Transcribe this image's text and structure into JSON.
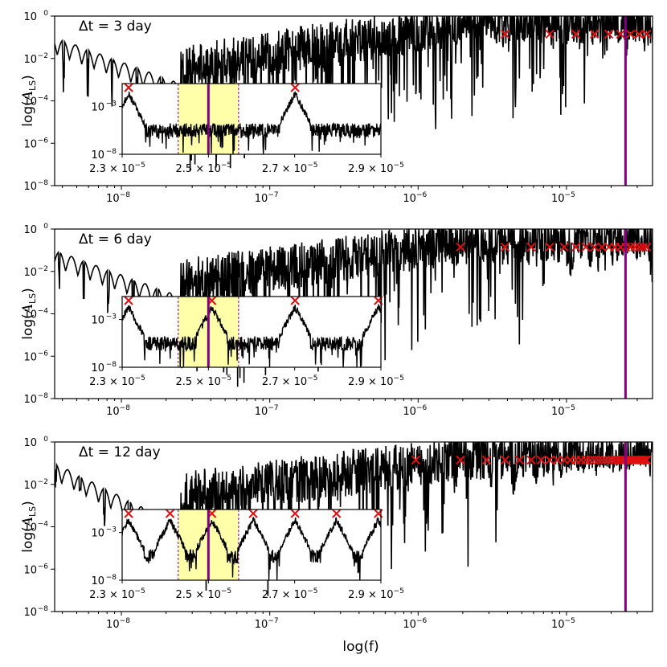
{
  "chart_data": {
    "type": "line",
    "xlabel": "log(f)",
    "ylabel_main": "log(",
    "ylabel_sym": "A",
    "ylabel_sub": "LS",
    "ylabel_close": ")",
    "xlim_log10": [
      -8.45,
      -4.42
    ],
    "ylim_log10": [
      -8,
      0
    ],
    "x_ticks": [
      {
        "base": "10",
        "exp": "−8",
        "log": -8
      },
      {
        "base": "10",
        "exp": "−7",
        "log": -7
      },
      {
        "base": "10",
        "exp": "−6",
        "log": -6
      },
      {
        "base": "10",
        "exp": "−5",
        "log": -5
      }
    ],
    "y_ticks": [
      {
        "base": "10",
        "exp": "0",
        "log": 0
      },
      {
        "base": "10",
        "exp": "−2",
        "log": -2
      },
      {
        "base": "10",
        "exp": "−4",
        "log": -4
      },
      {
        "base": "10",
        "exp": "−6",
        "log": -6
      },
      {
        "base": "10",
        "exp": "−8",
        "log": -8
      }
    ],
    "inset": {
      "xlim": [
        2.3e-05,
        2.9e-05
      ],
      "ylim_log10": [
        -8,
        0
      ],
      "x_ticks": [
        {
          "text": "2.3 × 10",
          "exp": "−5",
          "value": 2.3e-05
        },
        {
          "text": "2.5 × 10",
          "exp": "−5",
          "value": 2.5e-05
        },
        {
          "text": "2.7 × 10",
          "exp": "−5",
          "value": 2.7e-05
        },
        {
          "text": "2.9 × 10",
          "exp": "−5",
          "value": 2.9e-05
        }
      ],
      "y_ticks": [
        {
          "base": "10",
          "exp": "−3",
          "log": -3
        },
        {
          "base": "10",
          "exp": "−8",
          "log": -8
        }
      ],
      "band": [
        2.43e-05,
        2.57e-05
      ],
      "marker_line": 2.5e-05
    },
    "vertical_line_f": 2.5e-05,
    "panels": [
      {
        "label": "Δt = 3 day",
        "dt_days": 3,
        "peaks_f": [
          3.858e-06,
          7.716e-06,
          1.157e-05,
          1.543e-05,
          1.929e-05,
          2.315e-05,
          2.701e-05,
          3.086e-05,
          3.472e-05
        ],
        "inset_peaks_f": [
          2.315e-05,
          2.701e-05
        ],
        "noise_floor": -4.8
      },
      {
        "label": "Δt = 6 day",
        "dt_days": 6,
        "peaks_f": [
          1.929e-06,
          3.858e-06,
          5.787e-06,
          7.716e-06,
          9.645e-06,
          1.157e-05,
          1.35e-05,
          1.543e-05,
          1.736e-05,
          1.929e-05,
          2.122e-05,
          2.315e-05,
          2.508e-05,
          2.701e-05,
          2.894e-05,
          3.086e-05,
          3.279e-05,
          3.472e-05
        ],
        "inset_peaks_f": [
          2.315e-05,
          2.508e-05,
          2.701e-05,
          2.894e-05
        ],
        "noise_floor": -4.5
      },
      {
        "label": "Δt = 12 day",
        "dt_days": 12,
        "peaks_f": [
          9.645e-07,
          1.929e-06,
          2.894e-06,
          3.858e-06,
          4.823e-06,
          5.787e-06,
          6.752e-06,
          7.716e-06,
          8.681e-06,
          9.645e-06,
          1.061e-05,
          1.157e-05,
          1.254e-05,
          1.35e-05,
          1.447e-05,
          1.543e-05,
          1.64e-05,
          1.736e-05,
          1.833e-05,
          1.929e-05,
          2.025e-05,
          2.122e-05,
          2.218e-05,
          2.315e-05,
          2.411e-05,
          2.508e-05,
          2.604e-05,
          2.701e-05,
          2.797e-05,
          2.894e-05,
          2.99e-05,
          3.086e-05,
          3.183e-05,
          3.279e-05,
          3.376e-05,
          3.472e-05
        ],
        "inset_peaks_f": [
          2.315e-05,
          2.411e-05,
          2.508e-05,
          2.604e-05,
          2.701e-05,
          2.797e-05,
          2.894e-05
        ],
        "noise_floor": -4.3
      }
    ]
  },
  "colors": {
    "line": "#000000",
    "peak_marker": "#e01010",
    "vline": "#800080",
    "band": "#ffffaa",
    "band_edge": "#800080"
  }
}
